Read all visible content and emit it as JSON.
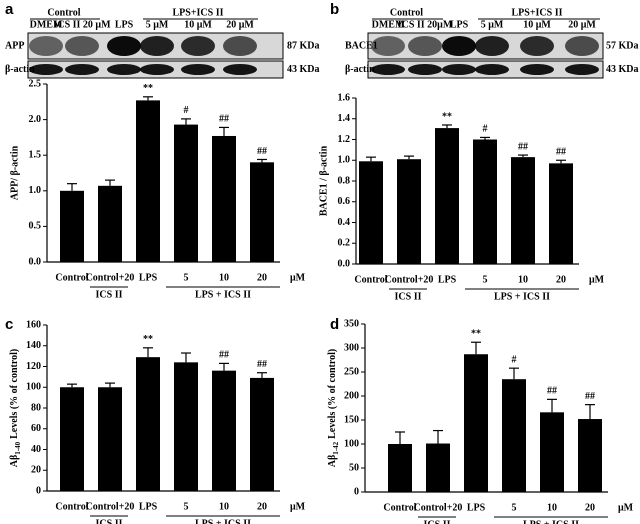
{
  "chart_data": [
    {
      "type": "bar",
      "panel": "a",
      "y_label": "APP/ β-actin",
      "categories": [
        "Control",
        "Control+20",
        "LPS",
        "5",
        "10",
        "20"
      ],
      "values": [
        1.0,
        1.07,
        2.27,
        1.93,
        1.77,
        1.4
      ],
      "errors": [
        0.1,
        0.08,
        0.05,
        0.08,
        0.12,
        0.04
      ],
      "annotations": [
        null,
        null,
        "**",
        "#",
        "##",
        "##"
      ],
      "groups": [
        "ICS II",
        "LPS + ICS II"
      ],
      "unit": "μM",
      "color": "#000000",
      "ylim": [
        0,
        2.5
      ],
      "yticks": [
        {
          "value": 0,
          "label": "0.0"
        },
        {
          "value": 0.5,
          "label": "0.5"
        },
        {
          "value": 1,
          "label": "1.0"
        },
        {
          "value": 1.5,
          "label": "1.5"
        },
        {
          "value": 2,
          "label": "2.0"
        },
        {
          "value": 2.5,
          "label": "2.5"
        }
      ],
      "blot": {
        "groups": [
          "Control",
          "LPS+ICS II"
        ],
        "lanes": [
          "DMEM",
          "ICS II 20 μM",
          "LPS",
          "5 μM",
          "10 μM",
          "20 μM"
        ],
        "rows": [
          {
            "label": "APP",
            "size": "87 KDa"
          },
          {
            "label": "β-actin",
            "size": "43 KDa"
          }
        ]
      }
    },
    {
      "type": "bar",
      "panel": "b",
      "y_label": "BACE1 / β-actin",
      "categories": [
        "Control",
        "Control+20",
        "LPS",
        "5",
        "10",
        "20"
      ],
      "values": [
        0.99,
        1.01,
        1.31,
        1.2,
        1.03,
        0.97
      ],
      "errors": [
        0.04,
        0.03,
        0.03,
        0.02,
        0.02,
        0.03
      ],
      "annotations": [
        null,
        null,
        "**",
        "#",
        "##",
        "##"
      ],
      "groups": [
        "ICS II",
        "LPS + ICS II"
      ],
      "unit": "μM",
      "color": "#000000",
      "ylim": [
        0,
        1.6
      ],
      "yticks": [
        {
          "value": 0,
          "label": "0.0"
        },
        {
          "value": 0.2,
          "label": "0.2"
        },
        {
          "value": 0.4,
          "label": "0.4"
        },
        {
          "value": 0.6,
          "label": "0.6"
        },
        {
          "value": 0.8,
          "label": "0.8"
        },
        {
          "value": 1,
          "label": "1.0"
        },
        {
          "value": 1.2,
          "label": "1.2"
        },
        {
          "value": 1.4,
          "label": "1.4"
        },
        {
          "value": 1.6,
          "label": "1.6"
        }
      ],
      "blot": {
        "groups": [
          "Control",
          "LPS+ICS II"
        ],
        "lanes": [
          "DMEM",
          "ICS II 20μM",
          "LPS",
          "5 μM",
          "10 μM",
          "20 μM"
        ],
        "rows": [
          {
            "label": "BACE1",
            "size": "57 KDa"
          },
          {
            "label": "β-actin",
            "size": "43 KDa"
          }
        ]
      }
    },
    {
      "type": "bar",
      "panel": "c",
      "y_label": "Aβ",
      "y_label_sub": "1-40",
      "y_label_rest": "Levels (% of control)",
      "categories": [
        "Control",
        "Control+20",
        "LPS",
        "5",
        "10",
        "20"
      ],
      "values": [
        100,
        100,
        129,
        124,
        116,
        109
      ],
      "errors": [
        3,
        4,
        9,
        9,
        7,
        5
      ],
      "annotations": [
        null,
        null,
        "**",
        null,
        "##",
        "##"
      ],
      "groups": [
        "ICS II",
        "LPS + ICS II"
      ],
      "unit": "μM",
      "color": "#000000",
      "ylim": [
        0,
        160
      ],
      "yticks": [
        0,
        20,
        40,
        60,
        80,
        100,
        120,
        140,
        160
      ]
    },
    {
      "type": "bar",
      "panel": "d",
      "y_label": "Aβ",
      "y_label_sub": "1-42",
      "y_label_rest": "Levels (% of control)",
      "categories": [
        "Control",
        "Control+20",
        "LPS",
        "5",
        "10",
        "20"
      ],
      "values": [
        100,
        101,
        287,
        235,
        166,
        152
      ],
      "errors": [
        25,
        27,
        25,
        23,
        27,
        30
      ],
      "annotations": [
        null,
        null,
        "**",
        "#",
        "##",
        "##"
      ],
      "groups": [
        "ICS II",
        "LPS + ICS II"
      ],
      "unit": "μM",
      "color": "#000000",
      "ylim": [
        0,
        350
      ],
      "yticks": [
        0,
        50,
        100,
        150,
        200,
        250,
        300,
        350
      ]
    }
  ]
}
